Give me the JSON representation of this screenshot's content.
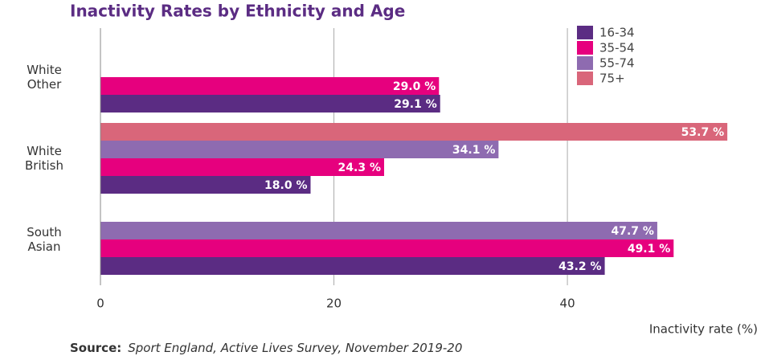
{
  "chart_data": {
    "type": "hbar",
    "title": "Inactivity Rates by Ethnicity and Age",
    "categories": [
      "White Other",
      "White British",
      "South Asian"
    ],
    "series": [
      {
        "name": "16-34",
        "color": "#5b2c83",
        "values": [
          29.1,
          18.0,
          43.2
        ],
        "value_labels": [
          "29.1 %",
          "18.0 %",
          "43.2 %"
        ]
      },
      {
        "name": "35-54",
        "color": "#e6007e",
        "values": [
          29.0,
          24.3,
          49.1
        ],
        "value_labels": [
          "29.0 %",
          "24.3 %",
          "49.1 %"
        ]
      },
      {
        "name": "55-74",
        "color": "#8e6bb0",
        "values": [
          null,
          34.1,
          47.7
        ],
        "value_labels": [
          null,
          "34.1 %",
          "47.7 %"
        ]
      },
      {
        "name": "75+",
        "color": "#d9667a",
        "values": [
          null,
          53.7,
          null
        ],
        "value_labels": [
          null,
          "53.7 %",
          null
        ]
      }
    ],
    "xlim": [
      0,
      55
    ],
    "xticks": [
      0,
      20,
      40
    ],
    "x_label": "Inactivity rate (%)",
    "grid": true,
    "legend": "top-right",
    "source": {
      "label": "Source:",
      "text": "Sport England, Active Lives Survey, November 2019-20"
    }
  }
}
